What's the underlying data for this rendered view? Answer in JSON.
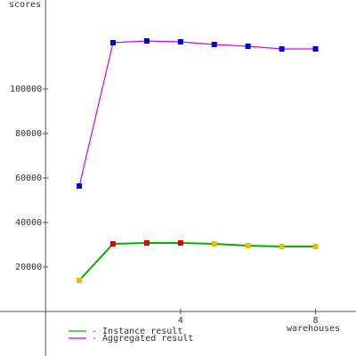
{
  "chart_data": {
    "type": "line",
    "y_label": "scores",
    "x_label": "warehouses",
    "x": [
      1,
      2,
      3,
      4,
      5,
      6,
      7,
      8
    ],
    "series": [
      {
        "name": "- Instance result",
        "color": "#00b000",
        "values": [
          14000,
          30400,
          30800,
          30800,
          30400,
          29600,
          29200,
          29200
        ],
        "marker_colors": [
          "#e0c000",
          "#e00000",
          "#e00000",
          "#e00000",
          "#e0c000",
          "#e0c000",
          "#e0c000",
          "#e0c000"
        ]
      },
      {
        "name": "- Aggregated result",
        "color": "#e000e0",
        "values": [
          56400,
          120800,
          121600,
          121200,
          120000,
          119200,
          118000,
          118000
        ],
        "marker_colors": [
          "#0000d0",
          "#0000d0",
          "#0000d0",
          "#0000d0",
          "#0000d0",
          "#0000d0",
          "#0000d0",
          "#0000d0"
        ]
      }
    ],
    "xlim": [
      -1.35,
      9.2
    ],
    "xticks": [
      4,
      8
    ],
    "ylim": [
      -20000,
      140000
    ],
    "yticks": [
      20000,
      40000,
      60000,
      80000,
      100000
    ]
  }
}
